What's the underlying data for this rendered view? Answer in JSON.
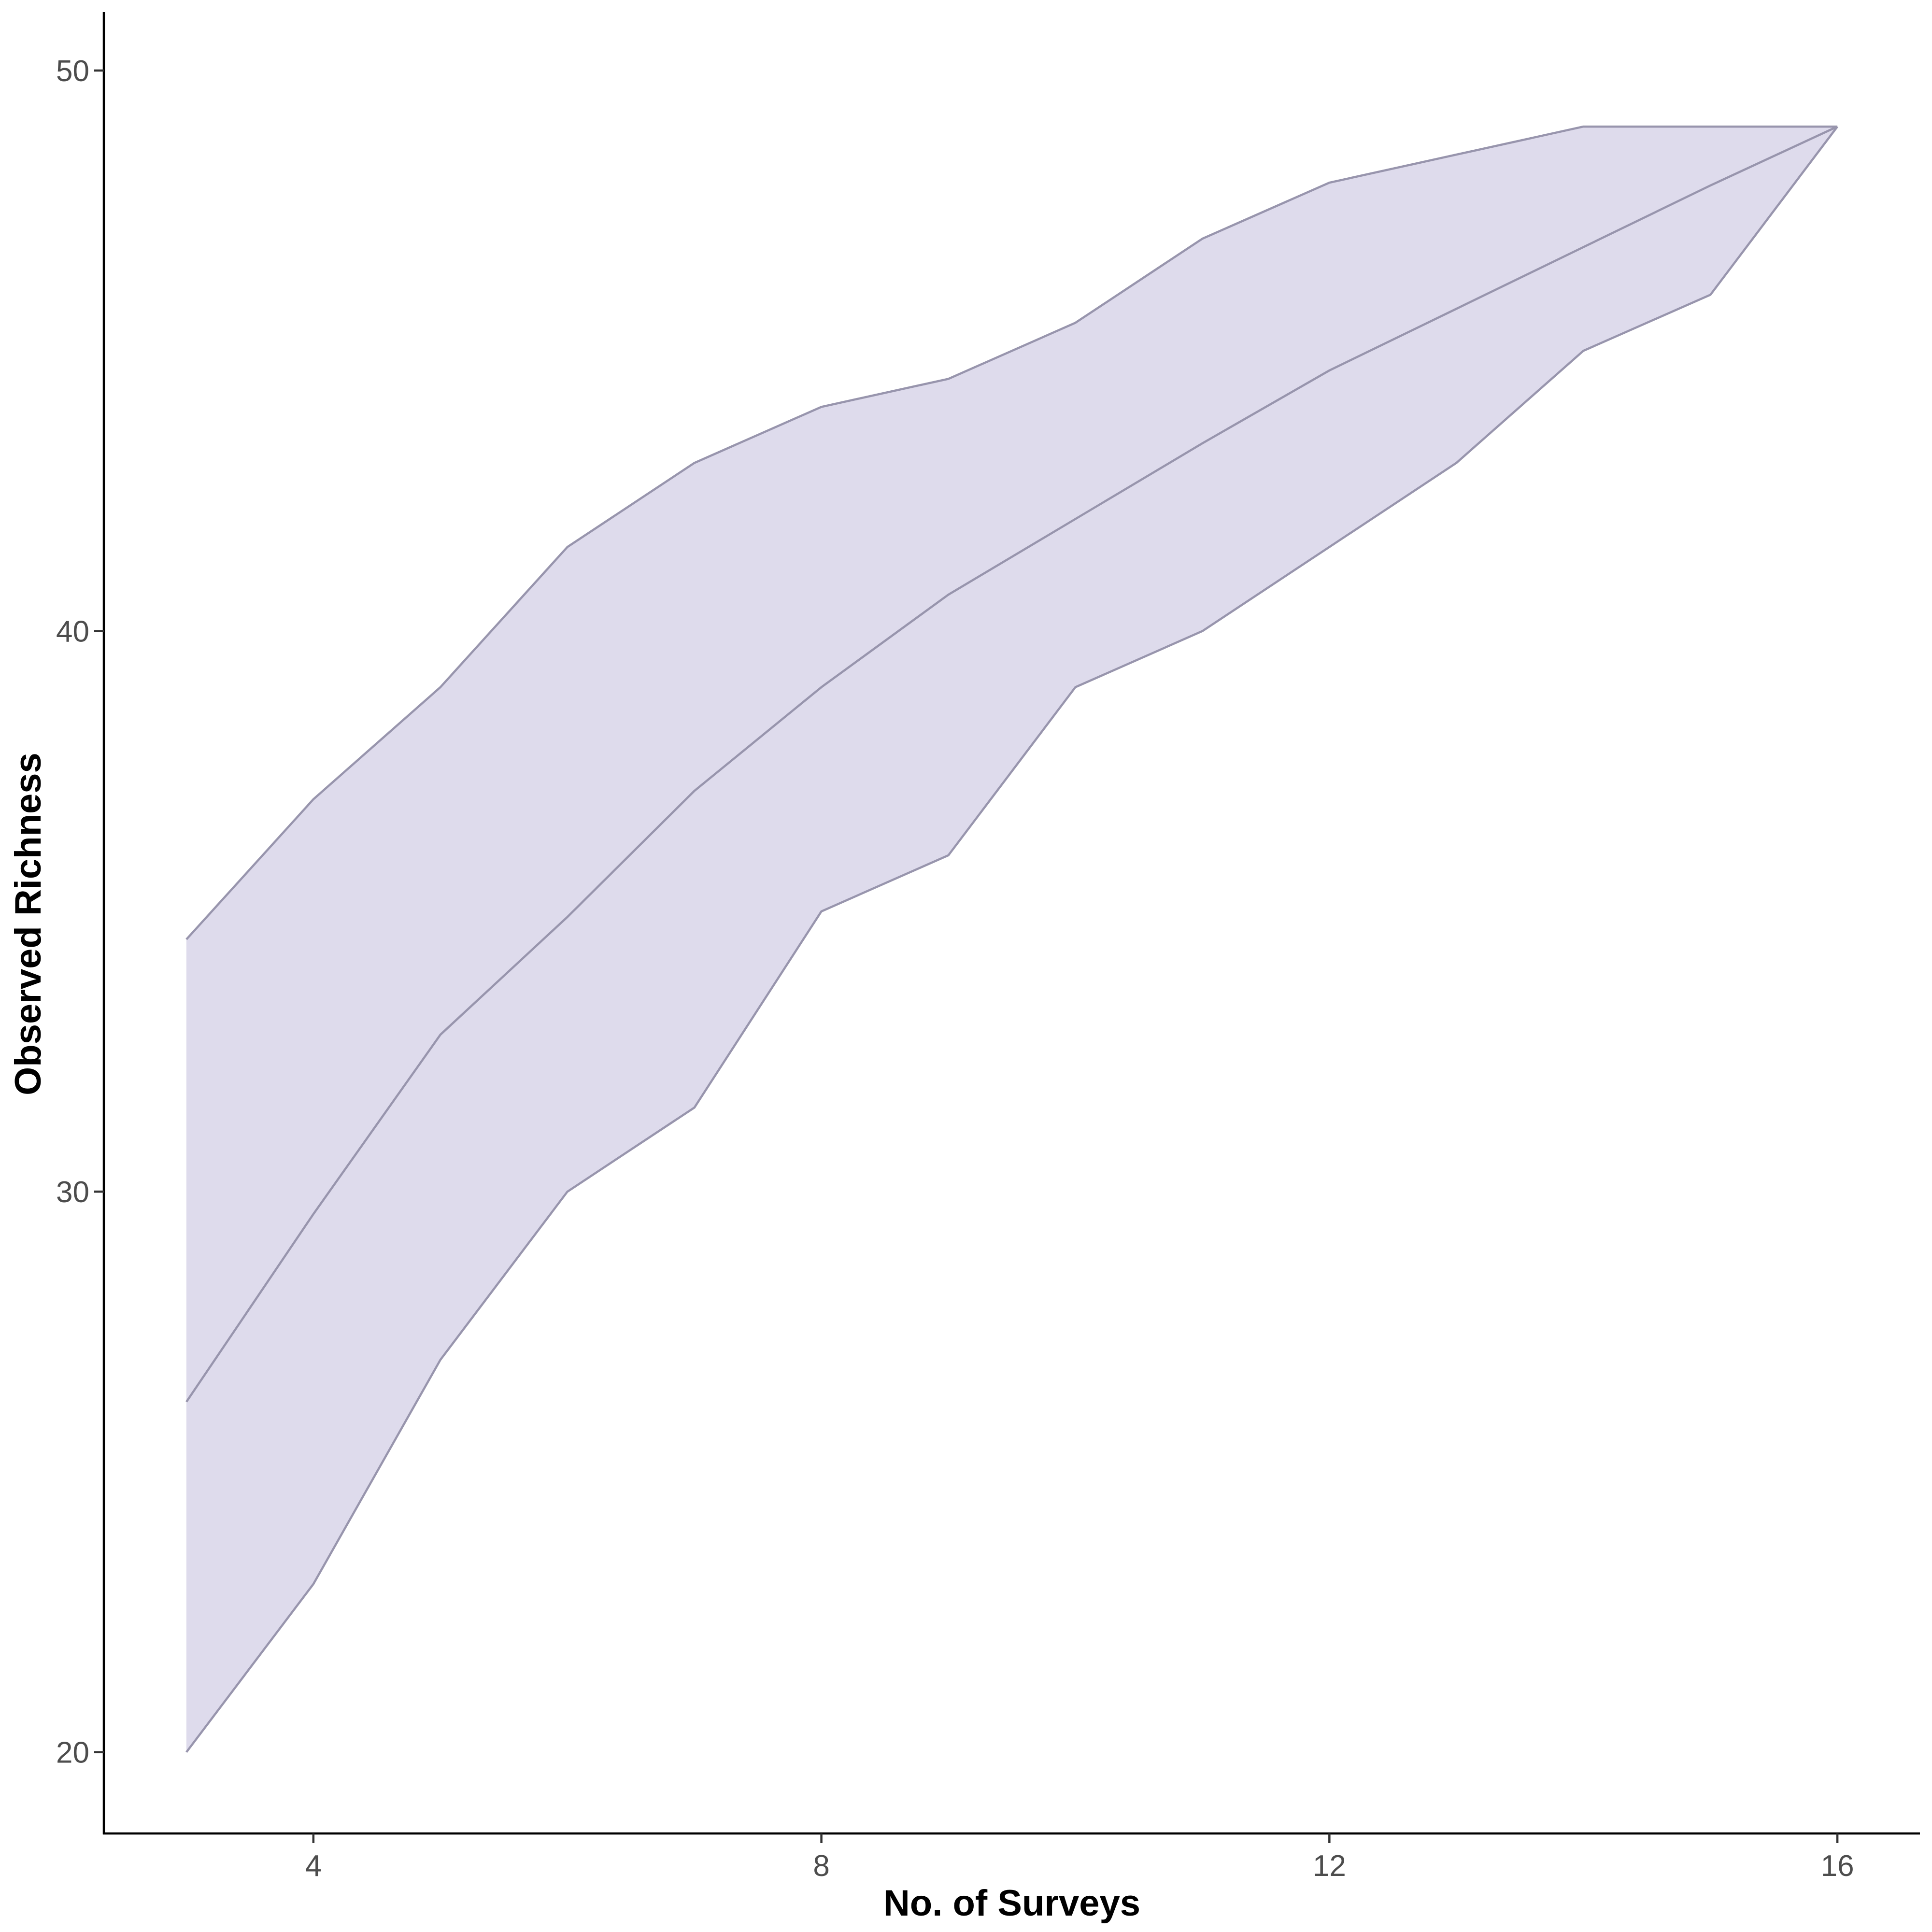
{
  "chart_data": {
    "type": "area",
    "xlabel": "No. of Surveys",
    "ylabel": "Observed Richness",
    "xlim": [
      2.35,
      16.65
    ],
    "ylim": [
      18.55,
      51.0
    ],
    "xticks": [
      4,
      8,
      12,
      16
    ],
    "yticks": [
      20,
      30,
      40,
      50
    ],
    "xtick_labels": [
      "4",
      "8",
      "12",
      "16"
    ],
    "ytick_labels": [
      "20",
      "30",
      "40",
      "50"
    ],
    "grid": false,
    "legend": "none",
    "x": [
      3,
      4,
      5,
      6,
      7,
      8,
      9,
      10,
      11,
      12,
      13,
      14,
      15,
      16
    ],
    "series": [
      {
        "role": "upper",
        "values": [
          34.5,
          37.0,
          39.0,
          41.5,
          43.0,
          44.0,
          44.5,
          45.5,
          47.0,
          48.0,
          48.5,
          49.0,
          49.0,
          49.0
        ]
      },
      {
        "role": "mean",
        "values": [
          26.25,
          29.6,
          32.8,
          34.9,
          37.15,
          39.0,
          40.65,
          42.0,
          43.35,
          44.65,
          45.75,
          46.85,
          47.95,
          49.0
        ]
      },
      {
        "role": "lower",
        "values": [
          20.0,
          23.0,
          27.0,
          30.0,
          31.5,
          35.0,
          36.0,
          39.0,
          40.0,
          41.5,
          43.0,
          45.0,
          46.0,
          49.0
        ]
      }
    ],
    "colors": {
      "ribbon_fill": "#dedbec",
      "line": "#9895ad",
      "axis": "#000000",
      "tick_text": "#4d4d4d"
    }
  }
}
